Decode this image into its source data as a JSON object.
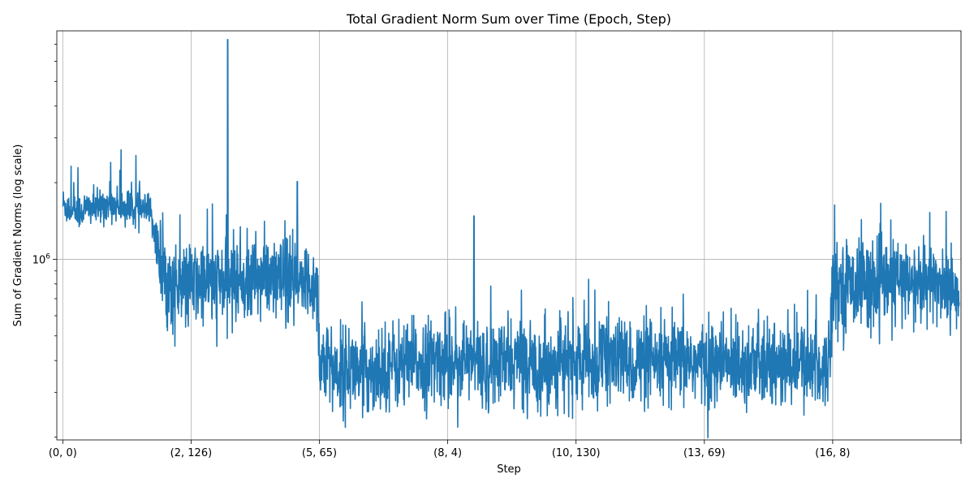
{
  "chart_data": {
    "type": "line",
    "title": "Total Gradient Norm Sum over Time (Epoch, Step)",
    "xlabel": "Step",
    "ylabel": "Sum of Gradient Norms (log scale)",
    "y_scale": "log",
    "ylim": [
      195000,
      7900000
    ],
    "xlim": [
      -7,
      1057
    ],
    "grid": true,
    "legend": "none",
    "line_color": "#1f77b4",
    "x_ticks": [
      {
        "x": 0,
        "label": "(0, 0)"
      },
      {
        "x": 151,
        "label": "(2, 126)"
      },
      {
        "x": 302,
        "label": "(5, 65)"
      },
      {
        "x": 453,
        "label": "(8, 4)"
      },
      {
        "x": 604,
        "label": "(10, 130)"
      },
      {
        "x": 755,
        "label": "(13, 69)"
      },
      {
        "x": 906,
        "label": "(16, 8)"
      },
      {
        "x": 1057,
        "label": ""
      }
    ],
    "y_ticks": [
      {
        "value": 1000000,
        "label": "10^6"
      }
    ],
    "series": [
      {
        "x": [
          0,
          10,
          20,
          30,
          40,
          50,
          60,
          70,
          80,
          90,
          100,
          105,
          110,
          115,
          120,
          125,
          130,
          140,
          150,
          160,
          170,
          180,
          190,
          194,
          200,
          210,
          220,
          230,
          240,
          250,
          260,
          270,
          276,
          280,
          290,
          300,
          302,
          310,
          320,
          330,
          340,
          350,
          360,
          370,
          380,
          400,
          420,
          440,
          460,
          480,
          484,
          500,
          520,
          540,
          560,
          580,
          600,
          620,
          640,
          660,
          680,
          700,
          720,
          740,
          760,
          780,
          800,
          820,
          840,
          860,
          880,
          900,
          906,
          910,
          920,
          940,
          960,
          980,
          1000,
          1020,
          1040,
          1055
        ],
        "y": [
          1650000,
          1560000,
          1540000,
          1600000,
          1580000,
          1640000,
          1650000,
          1600000,
          1580000,
          1560000,
          1550000,
          1450000,
          1200000,
          950000,
          860000,
          790000,
          760000,
          770000,
          780000,
          800000,
          830000,
          790000,
          820000,
          7300000,
          820000,
          840000,
          800000,
          860000,
          830000,
          820000,
          810000,
          800000,
          2020000,
          780000,
          800000,
          790000,
          400000,
          380000,
          370000,
          360000,
          380000,
          350000,
          360000,
          370000,
          390000,
          380000,
          390000,
          400000,
          410000,
          390000,
          1480000,
          380000,
          390000,
          400000,
          380000,
          390000,
          400000,
          380000,
          410000,
          400000,
          390000,
          380000,
          390000,
          400000,
          380000,
          390000,
          400000,
          380000,
          370000,
          390000,
          380000,
          370000,
          820000,
          800000,
          790000,
          810000,
          780000,
          820000,
          790000,
          800000,
          810000,
          720000
        ]
      }
    ]
  }
}
